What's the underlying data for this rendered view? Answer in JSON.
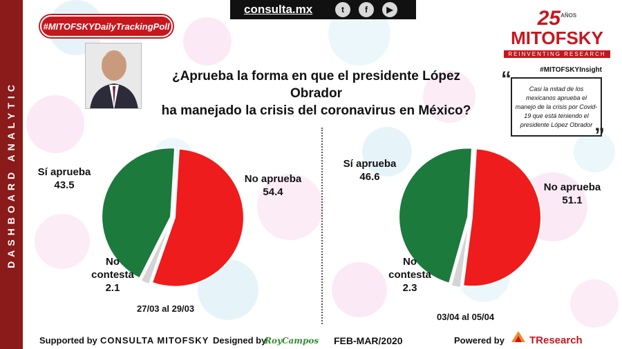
{
  "header": {
    "site": "consulta.mx",
    "social_icons": [
      "twitter-icon",
      "facebook-icon",
      "youtube-icon"
    ],
    "hashtag": "#MITOFSKYDailyTrackingPoll"
  },
  "logo": {
    "anniversary": "25",
    "anniversary_small": "AÑOS",
    "name": "MITOFSKY",
    "tagline": "REINVENTING RESEARCH"
  },
  "side_label": "DASHBOARD ANALYTIC",
  "question": {
    "line1": "¿Aprueba la forma en que el presidente López Obrador",
    "line2": "ha manejado la crisis del coronavirus en México?"
  },
  "insight": {
    "title": "#MITOFSKYInsight",
    "text": "Casi la mitad de los mexicanos aprueba el manejo de la crisis por Covid-19 que está teniendo el presidente López Obrador"
  },
  "colors": {
    "approve": "#1b7a3c",
    "disapprove": "#ee1c1c",
    "no_answer": "#d4d4d4",
    "brand": "#c8161d"
  },
  "chart_data": [
    {
      "type": "pie",
      "period": "27/03 al 29/03",
      "slices": [
        {
          "label": "No aprueba",
          "value": 54.4,
          "color": "#ee1c1c"
        },
        {
          "label": "No contesta",
          "value": 2.1,
          "color": "#d4d4d4"
        },
        {
          "label": "Sí aprueba",
          "value": 43.5,
          "color": "#1b7a3c"
        }
      ]
    },
    {
      "type": "pie",
      "period": "03/04 al 05/04",
      "slices": [
        {
          "label": "No aprueba",
          "value": 51.1,
          "color": "#ee1c1c"
        },
        {
          "label": "No contesta",
          "value": 2.3,
          "color": "#d4d4d4"
        },
        {
          "label": "Sí aprueba",
          "value": 46.6,
          "color": "#1b7a3c"
        }
      ]
    }
  ],
  "footer": {
    "supported_label": "Supported by",
    "supported_by": "CONSULTA MITOFSKY",
    "designed_label": "Designed by",
    "designer": "RoyCampos",
    "date": "FEB-MAR/2020",
    "powered_label": "Powered by",
    "powered_by": "TResearch"
  }
}
